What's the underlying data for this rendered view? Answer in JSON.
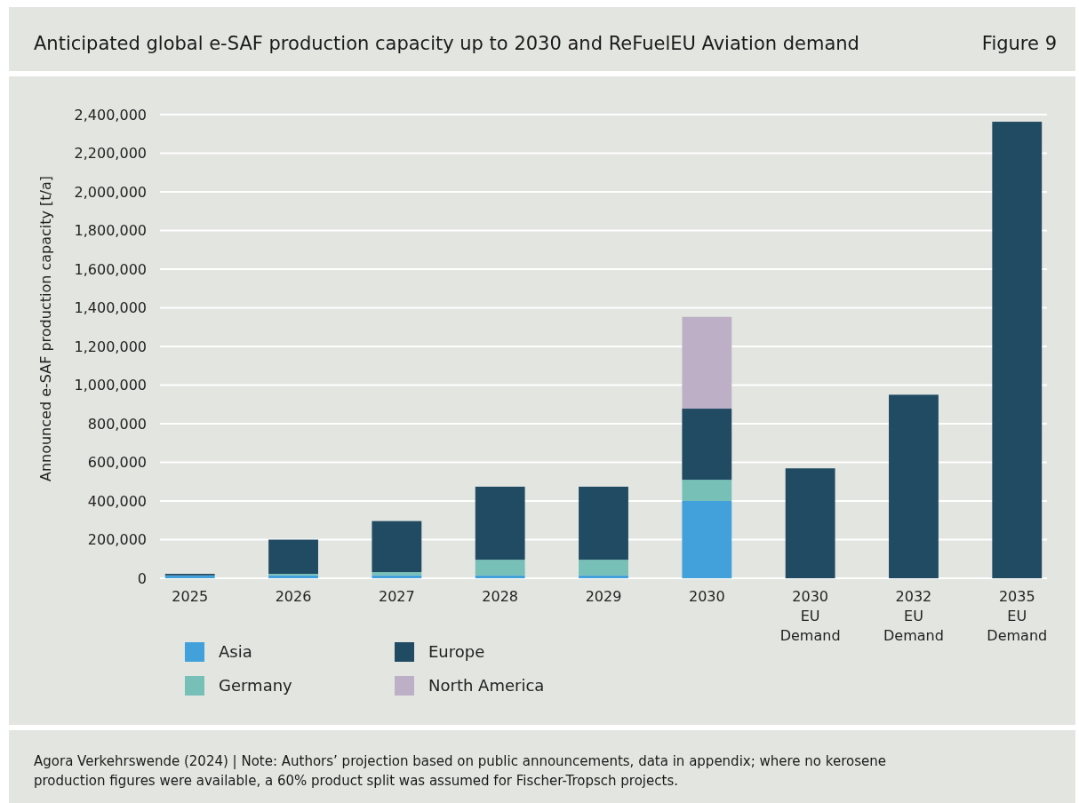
{
  "chart_data": {
    "type": "bar",
    "title": "Anticipated global e-SAF production capacity up to 2030 and ReFuelEU Aviation demand",
    "ylabel": "Announced e-SAF production capacity [t/a]",
    "categories": [
      "2025",
      "2026",
      "2027",
      "2028",
      "2029",
      "2030",
      "2030\nEU\nDemand",
      "2032\nEU\nDemand",
      "2035\nEU\nDemand"
    ],
    "series": [
      {
        "name": "Asia",
        "color": "#42a1db",
        "values": [
          15000,
          15000,
          15000,
          15000,
          15000,
          400000,
          null,
          null,
          null
        ]
      },
      {
        "name": "Germany",
        "color": "#76c0b7",
        "values": [
          null,
          8000,
          17000,
          81000,
          81000,
          110000,
          null,
          null,
          null
        ]
      },
      {
        "name": "Europe",
        "color": "#214a63",
        "values": [
          8000,
          177000,
          264000,
          378000,
          378000,
          368000,
          null,
          null,
          null
        ]
      },
      {
        "name": "North America",
        "color": "#bdb0c6",
        "values": [
          null,
          null,
          null,
          null,
          null,
          475000,
          null,
          null,
          null
        ]
      },
      {
        "color": "#214a63",
        "values": [
          null,
          null,
          null,
          null,
          null,
          null,
          569000,
          950000,
          2363000
        ]
      }
    ],
    "stacked": true,
    "ylim": [
      0,
      2400000
    ],
    "yticks": [
      {
        "value": 0,
        "label": "0"
      },
      {
        "value": 200000,
        "label": "200,000"
      },
      {
        "value": 400000,
        "label": "400,000"
      },
      {
        "value": 600000,
        "label": "600,000"
      },
      {
        "value": 800000,
        "label": "800,000"
      },
      {
        "value": 1000000,
        "label": "1,000,000"
      },
      {
        "value": 1200000,
        "label": "1,200,000"
      },
      {
        "value": 1400000,
        "label": "1,400,000"
      },
      {
        "value": 1600000,
        "label": "1,600,000"
      },
      {
        "value": 1800000,
        "label": "1,800,000"
      },
      {
        "value": 2000000,
        "label": "2,000,000"
      },
      {
        "value": 2200000,
        "label": "2,200,000"
      },
      {
        "value": 2400000,
        "label": "2,400,000"
      }
    ],
    "grid": "y",
    "legend": "bottom left",
    "annotations": [
      "Figure 9",
      "Agora Verkehrswende (2024) | Note: Authors’ projection based on public announcements, data in appendix; where no kerosene production figures were available, a 60% product split was assumed for Fischer-Tropsch projects."
    ]
  }
}
